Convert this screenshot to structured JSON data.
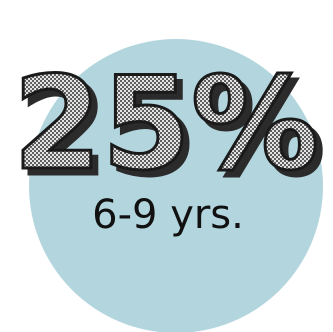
{
  "badge": {
    "percent": "25%",
    "age_range": "6-9 yrs."
  },
  "colors": {
    "circle_fill": "#b3d5de",
    "text_stroke": "#1a1a1a",
    "shadow": "#2b2b2b",
    "checker_light": "#e4e4e4",
    "checker_dark": "#5f5f5f"
  }
}
